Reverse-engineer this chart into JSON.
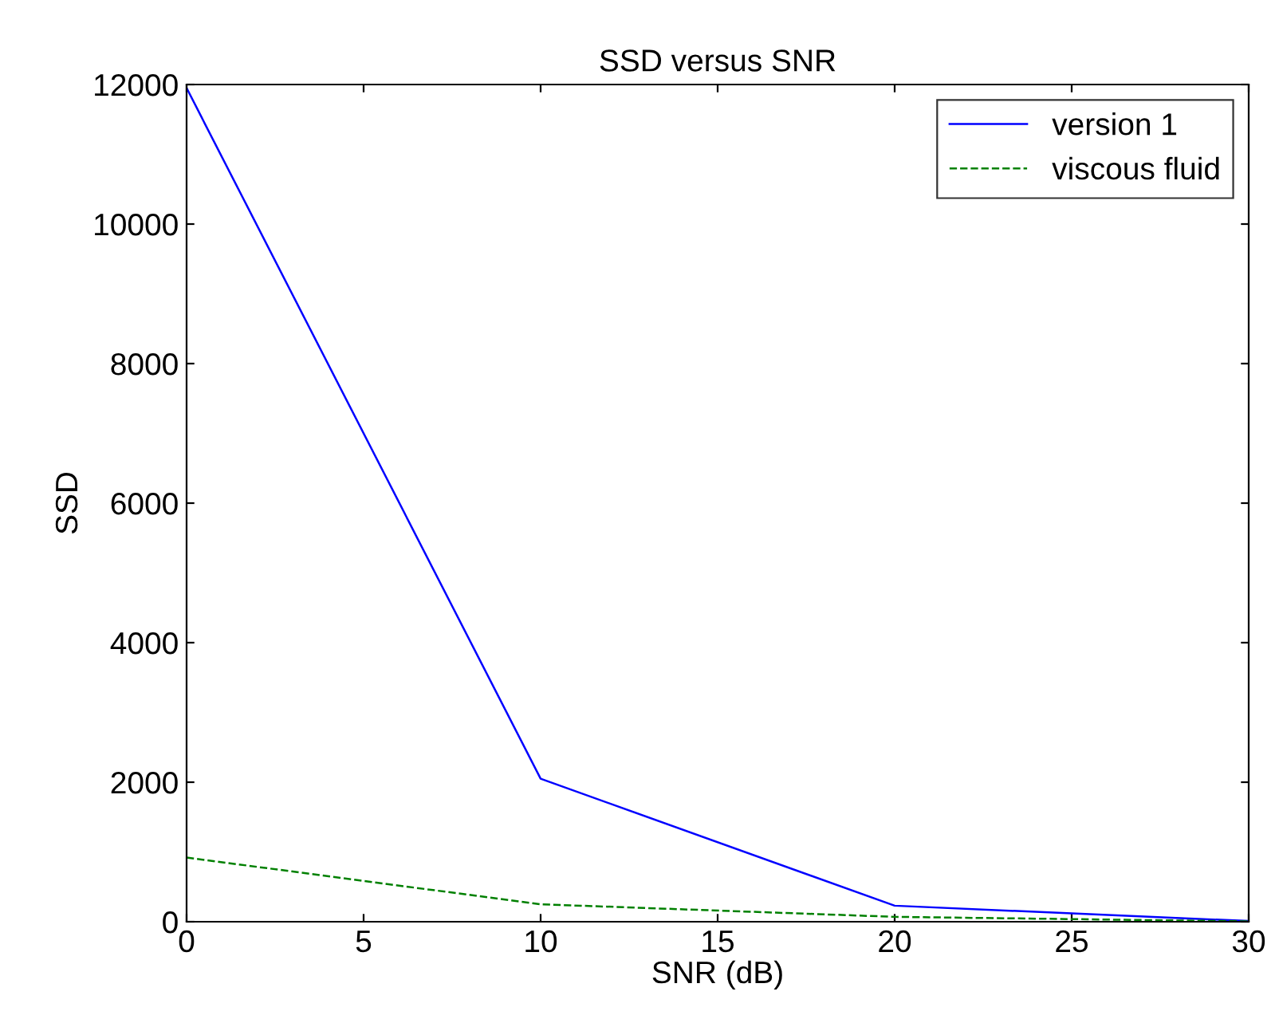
{
  "chart_data": {
    "type": "line",
    "title": "SSD versus SNR",
    "xlabel": "SNR (dB)",
    "ylabel": "SSD",
    "x": [
      0,
      10,
      20,
      30
    ],
    "series": [
      {
        "name": "version 1",
        "color": "#0000ff",
        "line_style": "solid",
        "values": [
          11950,
          2050,
          230,
          10
        ]
      },
      {
        "name": "viscous fluid",
        "color": "#008000",
        "line_style": "dashed",
        "values": [
          920,
          250,
          70,
          5
        ]
      }
    ],
    "xlim": [
      0,
      30
    ],
    "xticks": [
      0,
      5,
      10,
      15,
      20,
      25,
      30
    ],
    "ylim": [
      0,
      12000
    ],
    "yticks": [
      0,
      2000,
      4000,
      6000,
      8000,
      10000,
      12000
    ],
    "grid": false,
    "legend": "top right",
    "marker": "none"
  }
}
